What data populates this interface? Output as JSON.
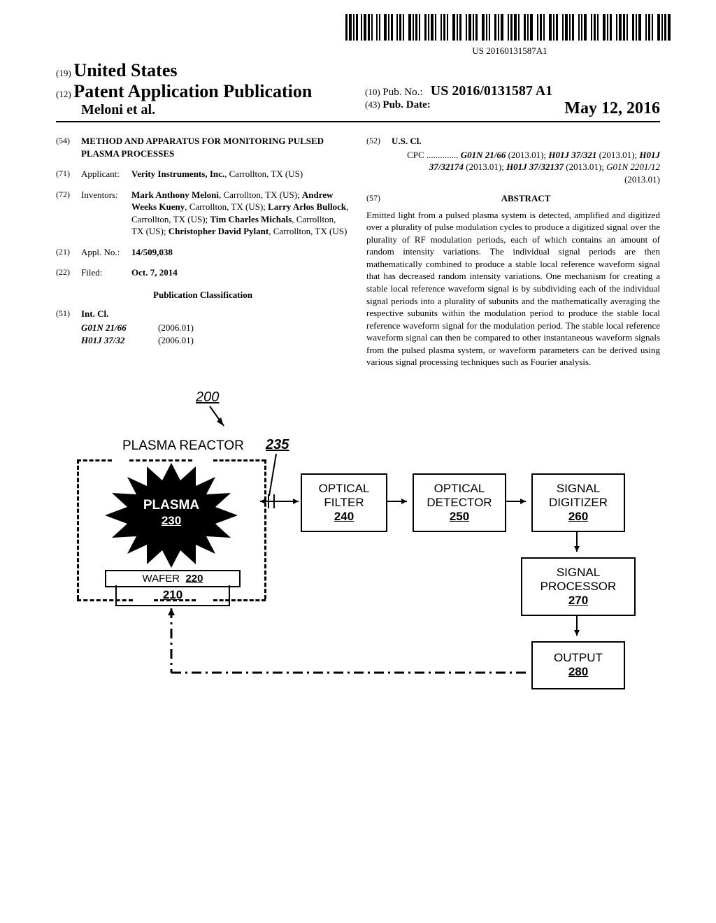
{
  "barcode_text": "US 20160131587A1",
  "header": {
    "country_code": "(19)",
    "country": "United States",
    "pub_code": "(12)",
    "pub_type": "Patent Application Publication",
    "authors": "Meloni et al.",
    "pubno_code": "(10)",
    "pubno_label": "Pub. No.:",
    "pubno": "US 2016/0131587 A1",
    "pubdate_code": "(43)",
    "pubdate_label": "Pub. Date:",
    "pubdate": "May 12, 2016"
  },
  "left": {
    "title_code": "(54)",
    "title": "METHOD AND APPARATUS FOR MONITORING PULSED PLASMA PROCESSES",
    "applicant_code": "(71)",
    "applicant_label": "Applicant:",
    "applicant": "Verity Instruments, Inc.",
    "applicant_loc": ", Carrollton, TX (US)",
    "inventors_code": "(72)",
    "inventors_label": "Inventors:",
    "inventors_html": "Mark Anthony Meloni, Carrollton, TX (US); Andrew Weeks Kueny, Carrollton, TX (US); Larry Arlos Bullock, Carrollton, TX (US); Tim Charles Michals, Carrollton, TX (US); Christopher David Pylant, Carrollton, TX (US)",
    "inv1": "Mark Anthony Meloni",
    "inv1_loc": ", Carrollton, TX (US); ",
    "inv2": "Andrew Weeks Kueny",
    "inv2_loc": ", Carrollton, TX (US); ",
    "inv3": "Larry Arlos Bullock",
    "inv3_loc": ", Carrollton, TX (US); ",
    "inv4": "Tim Charles Michals",
    "inv4_loc": ", Carrollton, TX (US); ",
    "inv5": "Christopher David Pylant",
    "inv5_loc": ", Carrollton, TX (US)",
    "applno_code": "(21)",
    "applno_label": "Appl. No.:",
    "applno": "14/509,038",
    "filed_code": "(22)",
    "filed_label": "Filed:",
    "filed": "Oct. 7, 2014",
    "classification_header": "Publication Classification",
    "intcl_code": "(51)",
    "intcl_label": "Int. Cl.",
    "intcl": [
      {
        "code": "G01N 21/66",
        "ver": "(2006.01)"
      },
      {
        "code": "H01J 37/32",
        "ver": "(2006.01)"
      }
    ]
  },
  "right": {
    "uscl_code": "(52)",
    "uscl_label": "U.S. Cl.",
    "cpc_label": "CPC ..............",
    "cpc1": "G01N 21/66",
    "cpc1_yr": " (2013.01); ",
    "cpc2": "H01J 37/321",
    "cpc2_yr": " (2013.01); ",
    "cpc3": "H01J 37/32174",
    "cpc3_yr": " (2013.01); ",
    "cpc4": "H01J 37/32137",
    "cpc4_yr": " (2013.01); ",
    "cpc5": "G01N 2201/12",
    "cpc5_yr": " (2013.01)",
    "abstract_code": "(57)",
    "abstract_label": "ABSTRACT",
    "abstract": "Emitted light from a pulsed plasma system is detected, amplified and digitized over a plurality of pulse modulation cycles to produce a digitized signal over the plurality of RF modulation periods, each of which contains an amount of random intensity variations. The individual signal periods are then mathematically combined to produce a stable local reference waveform signal that has decreased random intensity variations. One mechanism for creating a stable local reference waveform signal is by subdividing each of the individual signal periods into a plurality of subunits and the mathematically averaging the respective subunits within the modulation period to produce the stable local reference waveform signal for the modulation period. The stable local reference waveform signal can then be compared to other instantaneous waveform signals from the pulsed plasma system, or waveform parameters can be derived using various signal processing techniques such as Fourier analysis."
  },
  "figure": {
    "ref200": "200",
    "reactor_label": "PLASMA REACTOR",
    "ref235": "235",
    "plasma": "PLASMA",
    "ref230": "230",
    "wafer": "WAFER",
    "ref220": "220",
    "ref210": "210",
    "optical_filter": "OPTICAL FILTER",
    "ref240": "240",
    "optical_detector": "OPTICAL DETECTOR",
    "ref250": "250",
    "signal_digitizer": "SIGNAL DIGITIZER",
    "ref260": "260",
    "signal_processor": "SIGNAL PROCESSOR",
    "ref270": "270",
    "output": "OUTPUT",
    "ref280": "280"
  }
}
